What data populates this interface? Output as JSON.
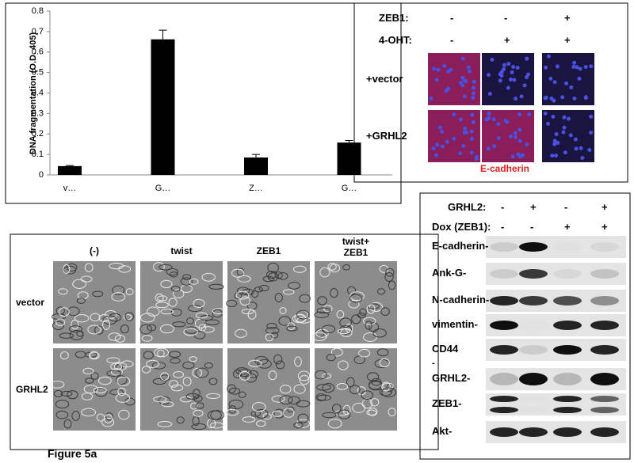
{
  "chart_data": {
    "type": "bar",
    "y_label": "DNA fragmentation (O.D. 405)",
    "categories": [
      "v…",
      "G…",
      "Z…",
      "G…"
    ],
    "values": [
      0.043,
      0.662,
      0.085,
      0.158
    ],
    "errors": [
      0.003,
      0.045,
      0.015,
      0.01
    ],
    "color": "#000000",
    "ylim": [
      0,
      0.8
    ],
    "yticks": [
      0,
      0.1,
      0.2,
      0.3,
      0.4,
      0.5,
      0.6,
      0.7,
      0.8
    ]
  },
  "immunofluorescence": {
    "treatments": [
      {
        "label": "ZEB1:",
        "signs": [
          "-",
          "-",
          "+"
        ]
      },
      {
        "label": "4-OHT:",
        "signs": [
          "-",
          "+",
          "+"
        ]
      }
    ],
    "conditions": [
      "+vector",
      "+GRHL2"
    ],
    "stain": "E-cadherin"
  },
  "morphology": {
    "columns": [
      "(-)",
      "twist",
      "ZEB1",
      "twist+ ZEB1"
    ],
    "rows": [
      "vector",
      "GRHL2"
    ]
  },
  "western_blot": {
    "treatments": [
      {
        "label": "GRHL2:",
        "signs": [
          "-",
          "+",
          "-",
          "+"
        ]
      },
      {
        "label": "Dox (ZEB1):",
        "signs": [
          "-",
          "-",
          "+",
          "+"
        ]
      }
    ],
    "rows": [
      "E-cadherin-",
      "Ank-G-",
      "N-cadherin-",
      "vimentin-",
      "CD44",
      "-",
      "GRHL2-",
      "ZEB1-",
      "Akt-"
    ]
  },
  "caption": "Figure 5a"
}
